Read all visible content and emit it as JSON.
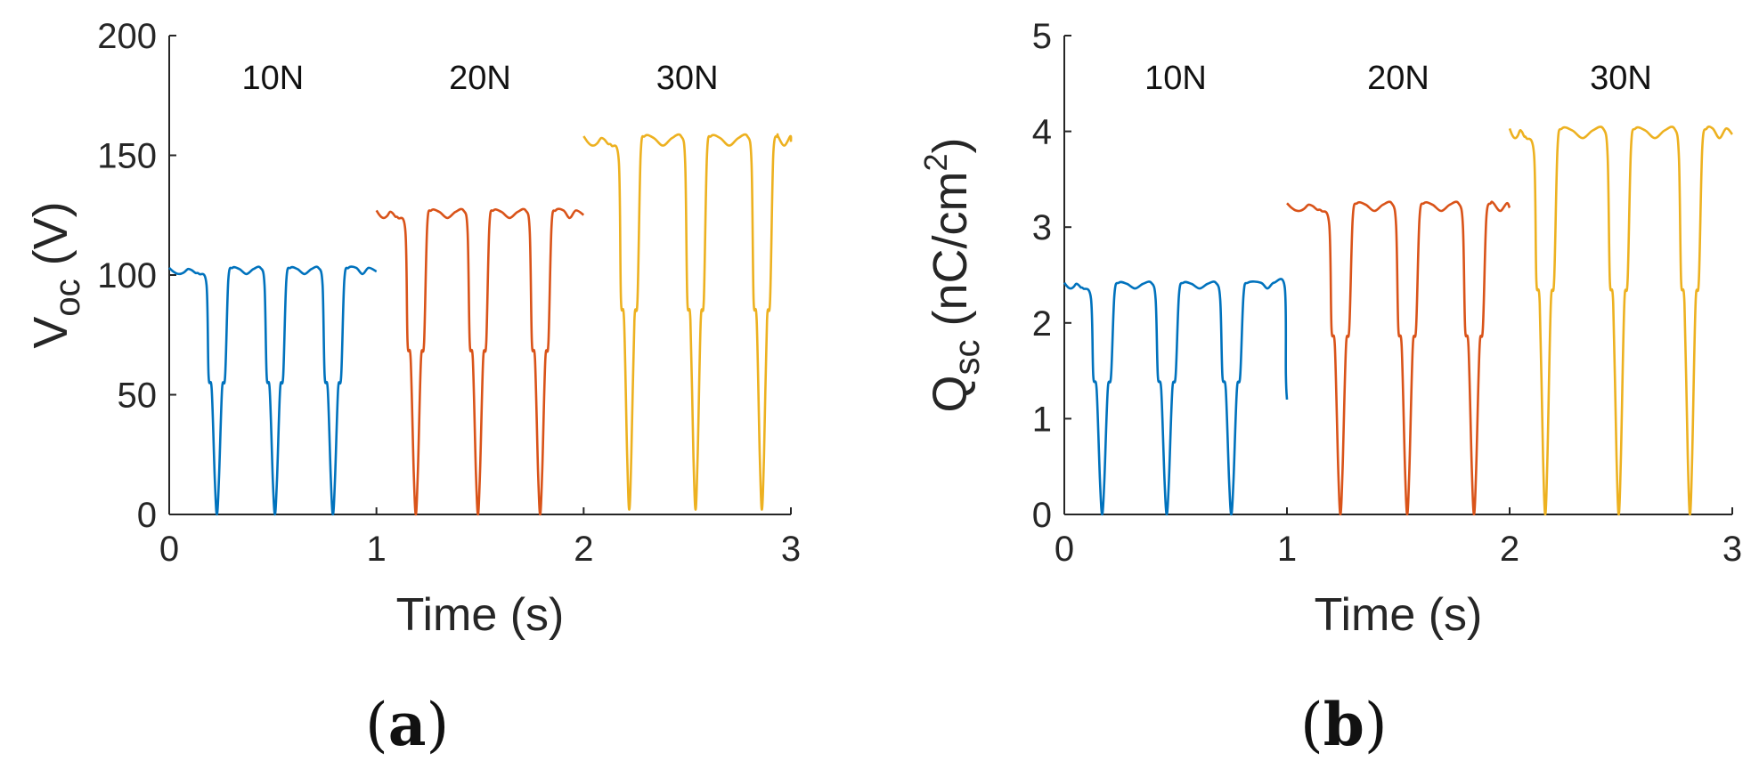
{
  "figure": {
    "panels": [
      {
        "open": "(",
        "letter": "a",
        "close": ")"
      },
      {
        "open": "(",
        "letter": "b",
        "close": ")"
      }
    ]
  },
  "chart_data": [
    {
      "type": "line",
      "id": "a",
      "title": "",
      "xlabel": "Time (s)",
      "ylabel": {
        "main": "V",
        "sub": "oc",
        "unit": " (V)"
      },
      "xlim": [
        0,
        3
      ],
      "ylim": [
        0,
        200
      ],
      "xticks": [
        0,
        1,
        2,
        3
      ],
      "yticks": [
        0,
        50,
        100,
        150,
        200
      ],
      "grid": false,
      "annotations": [
        {
          "text": "10N",
          "x": 0.5,
          "y": 178
        },
        {
          "text": "20N",
          "x": 1.5,
          "y": 178
        },
        {
          "text": "30N",
          "x": 2.5,
          "y": 178
        }
      ],
      "series": [
        {
          "name": "10N",
          "color": "#0072BD",
          "start": 0.0,
          "end": 1.0,
          "top": 103,
          "shoulder": 58,
          "bottom": 0,
          "minima": [
            0.23,
            0.51,
            0.79
          ]
        },
        {
          "name": "20N",
          "color": "#D95319",
          "start": 1.0,
          "end": 2.0,
          "top": 127,
          "shoulder": 72,
          "bottom": 0,
          "minima": [
            1.19,
            1.49,
            1.79
          ]
        },
        {
          "name": "30N",
          "color": "#EDB120",
          "start": 2.0,
          "end": 3.0,
          "top": 158,
          "shoulder": 90,
          "bottom": 2,
          "minima": [
            2.22,
            2.54,
            2.86
          ]
        }
      ]
    },
    {
      "type": "line",
      "id": "b",
      "title": "",
      "xlabel": "Time (s)",
      "ylabel": {
        "main": "Q",
        "sub": "sc",
        "unit": " (nC/cm",
        "sup": "2",
        "close": ")"
      },
      "xlim": [
        0,
        3
      ],
      "ylim": [
        0,
        5
      ],
      "xticks": [
        0,
        1,
        2,
        3
      ],
      "yticks": [
        0,
        1,
        2,
        3,
        4,
        5
      ],
      "grid": false,
      "annotations": [
        {
          "text": "10N",
          "x": 0.5,
          "y": 4.45
        },
        {
          "text": "20N",
          "x": 1.5,
          "y": 4.45
        },
        {
          "text": "30N",
          "x": 2.5,
          "y": 4.45
        }
      ],
      "series": [
        {
          "name": "10N",
          "color": "#0072BD",
          "start": 0.0,
          "end": 1.0,
          "top": 2.42,
          "shoulder": 1.45,
          "bottom": 0,
          "minima": [
            0.17,
            0.46,
            0.75
          ],
          "endValue": 1.2
        },
        {
          "name": "20N",
          "color": "#D95319",
          "start": 1.0,
          "end": 2.0,
          "top": 3.25,
          "shoulder": 1.95,
          "bottom": 0,
          "minima": [
            1.24,
            1.54,
            1.84
          ]
        },
        {
          "name": "30N",
          "color": "#EDB120",
          "start": 2.0,
          "end": 3.0,
          "top": 4.03,
          "shoulder": 2.45,
          "bottom": 0,
          "minima": [
            2.16,
            2.49,
            2.81
          ]
        }
      ]
    }
  ]
}
